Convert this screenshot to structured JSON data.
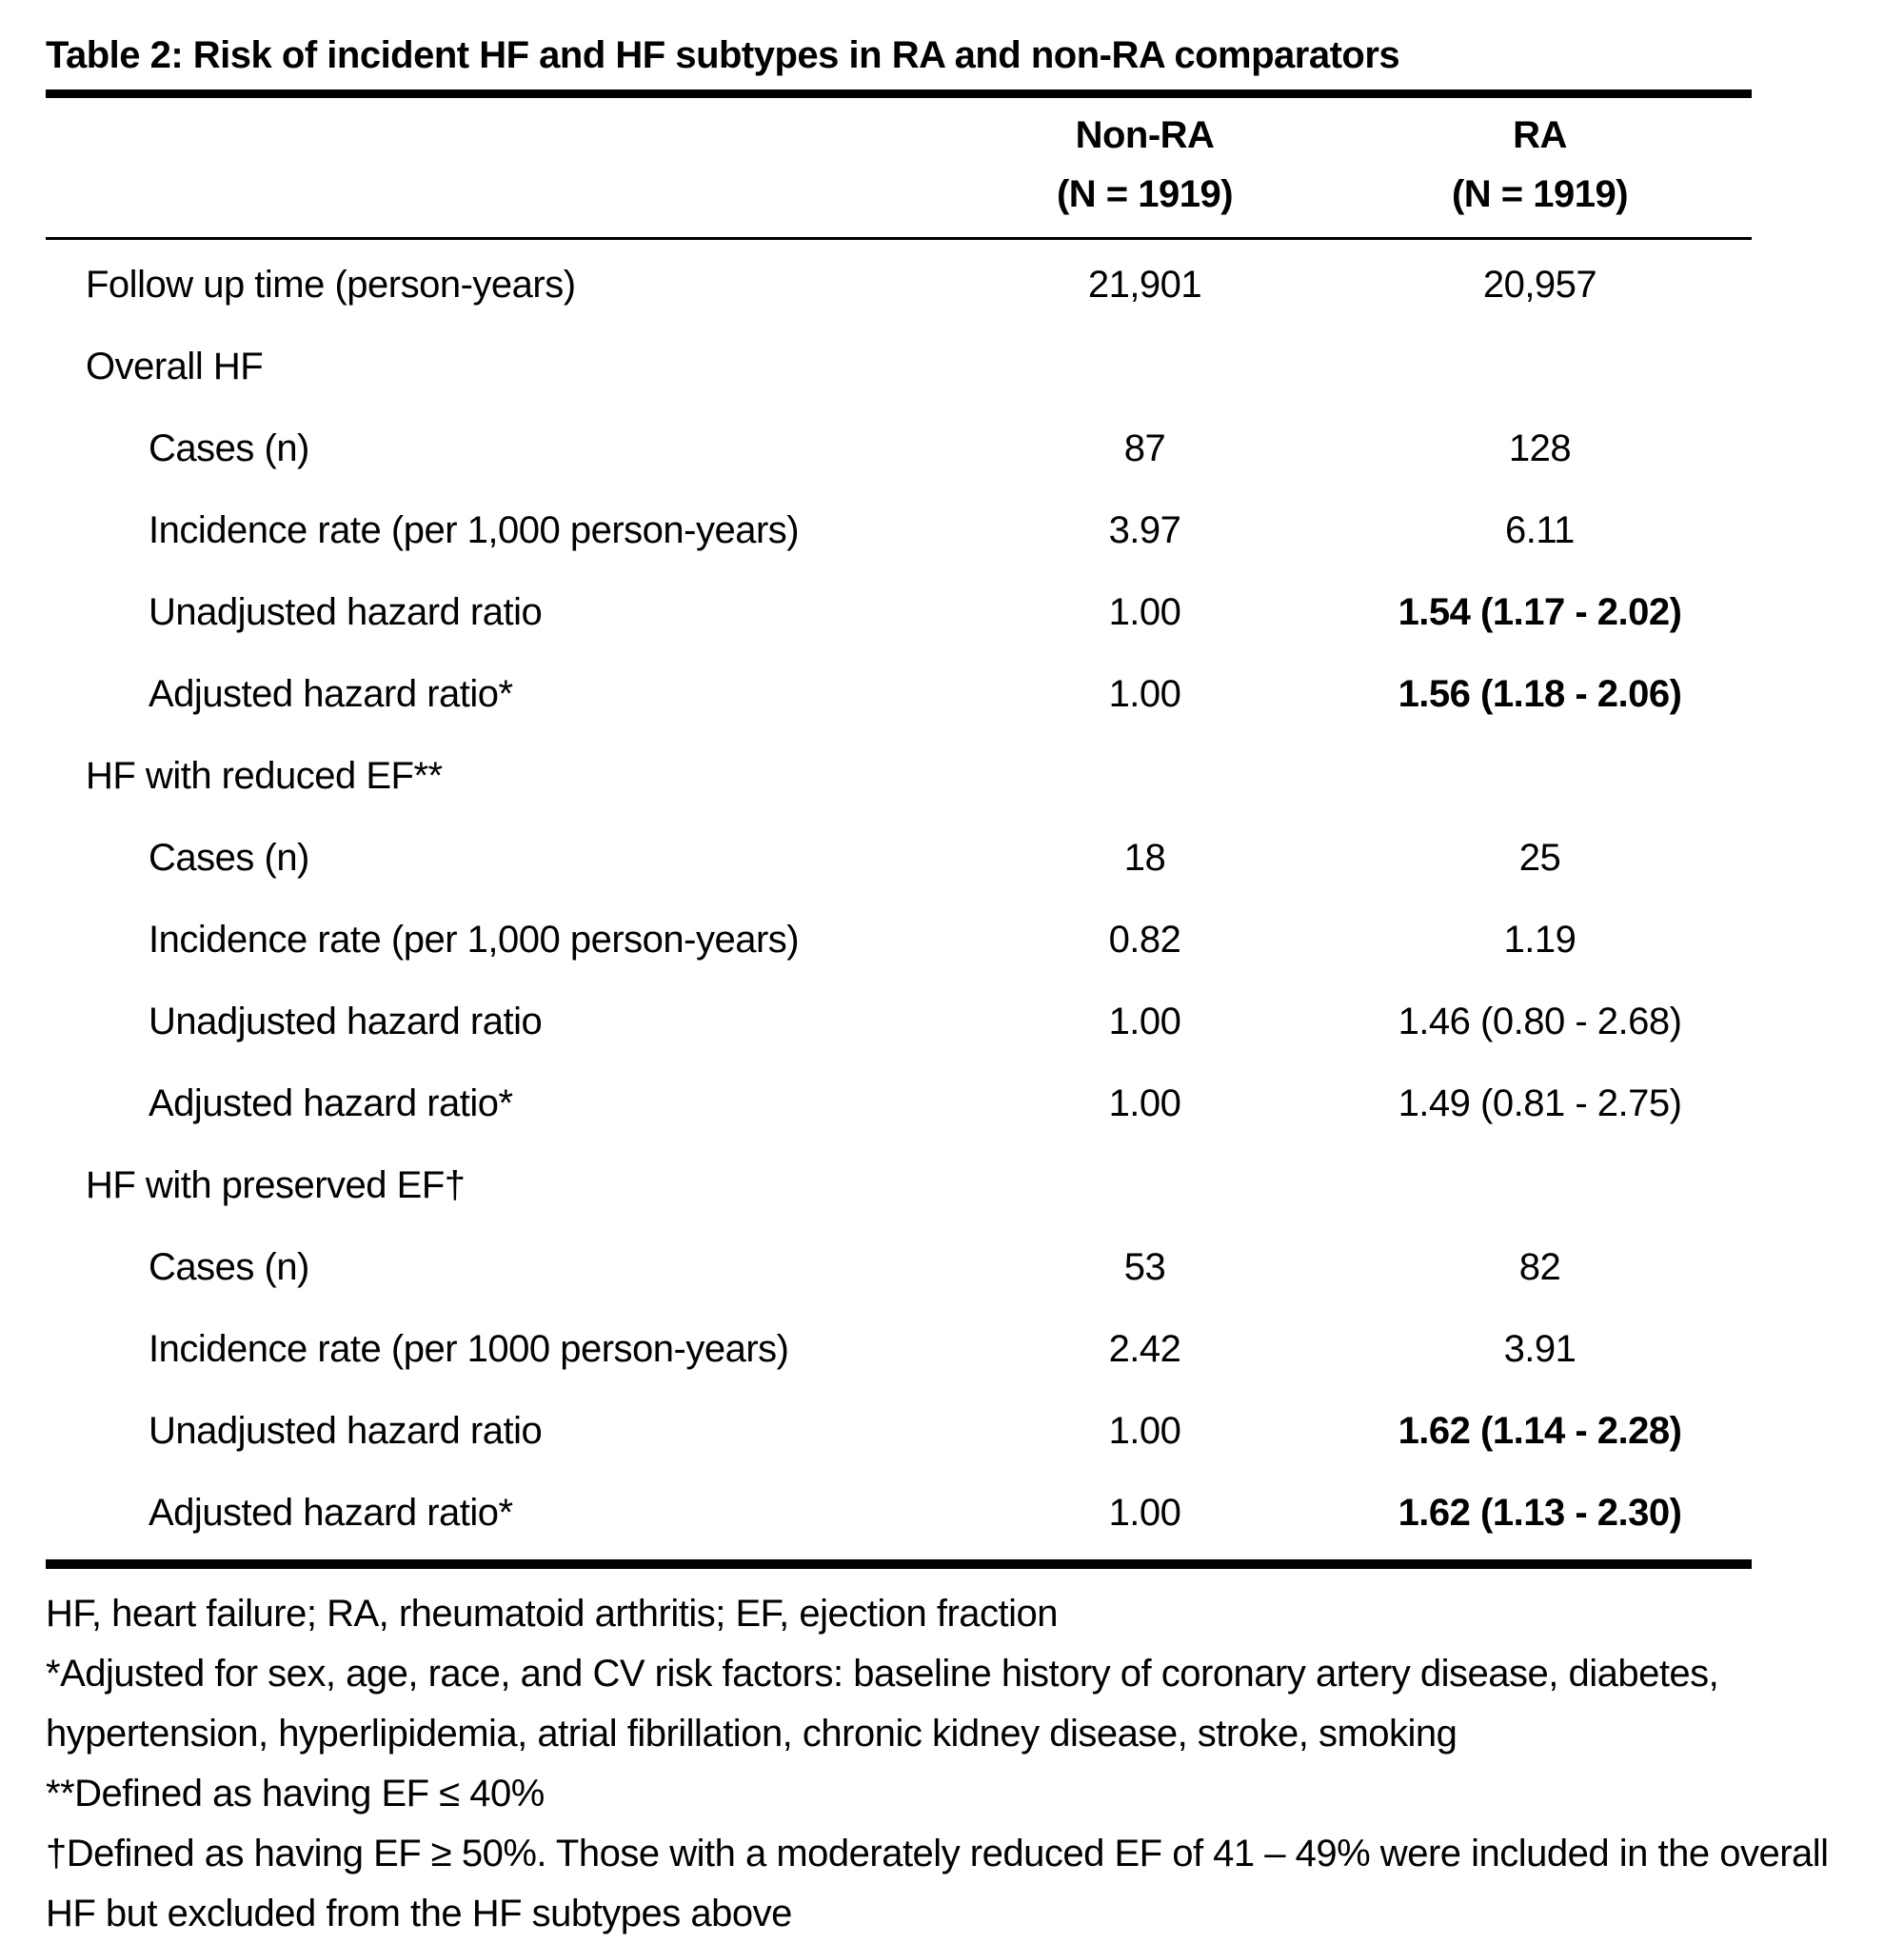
{
  "title": "Table 2: Risk of incident HF and HF subtypes in RA and non-RA comparators",
  "table": {
    "columns": [
      {
        "line1": "Non-RA",
        "line2": "(N = 1919)"
      },
      {
        "line1": "RA",
        "line2": "(N = 1919)"
      }
    ],
    "rows": [
      {
        "label": "Follow up time (person-years)",
        "non_ra": "21,901",
        "ra": "20,957"
      },
      {
        "label": "Overall HF",
        "non_ra": "",
        "ra": ""
      },
      {
        "label": "Cases (n)",
        "non_ra": "87",
        "ra": "128"
      },
      {
        "label": "Incidence rate (per 1,000 person-years)",
        "non_ra": "3.97",
        "ra": "6.11"
      },
      {
        "label": "Unadjusted hazard ratio",
        "non_ra": "1.00",
        "ra": "1.54 (1.17 - 2.02)"
      },
      {
        "label": "Adjusted hazard ratio*",
        "non_ra": "1.00",
        "ra": "1.56 (1.18 - 2.06)"
      },
      {
        "label": "HF with reduced EF**",
        "non_ra": "",
        "ra": ""
      },
      {
        "label": "Cases (n)",
        "non_ra": "18",
        "ra": "25"
      },
      {
        "label": "Incidence rate (per 1,000 person-years)",
        "non_ra": "0.82",
        "ra": "1.19"
      },
      {
        "label": "Unadjusted hazard ratio",
        "non_ra": "1.00",
        "ra": "1.46 (0.80 - 2.68)"
      },
      {
        "label": "Adjusted hazard ratio*",
        "non_ra": "1.00",
        "ra": "1.49 (0.81 - 2.75)"
      },
      {
        "label": "HF with preserved EF†",
        "non_ra": "",
        "ra": ""
      },
      {
        "label": "Cases (n)",
        "non_ra": "53",
        "ra": "82"
      },
      {
        "label": "Incidence rate (per 1000 person-years)",
        "non_ra": "2.42",
        "ra": "3.91"
      },
      {
        "label": "Unadjusted hazard ratio",
        "non_ra": "1.00",
        "ra": "1.62 (1.14 - 2.28)"
      },
      {
        "label": "Adjusted hazard ratio*",
        "non_ra": "1.00",
        "ra": "1.62 (1.13 - 2.30)"
      }
    ]
  },
  "footnotes": [
    "HF, heart failure; RA, rheumatoid arthritis; EF, ejection fraction",
    "*Adjusted for sex, age, race, and CV risk factors: baseline history of coronary artery disease, diabetes, hypertension, hyperlipidemia, atrial fibrillation, chronic kidney disease, stroke, smoking",
    "**Defined as having EF ≤ 40%",
    "†Defined as having EF ≥ 50%. Those with a moderately reduced EF of 41 – 49% were included in the overall HF but excluded from the HF subtypes above"
  ],
  "colors": {
    "text": "#000000",
    "background": "#ffffff",
    "rule": "#000000"
  }
}
